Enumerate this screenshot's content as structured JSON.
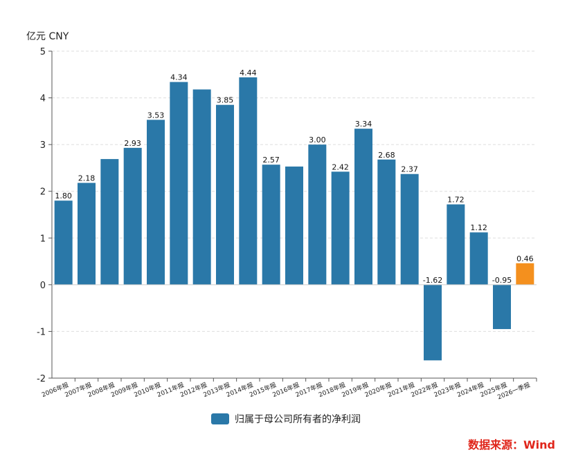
{
  "unit_label": "亿元  CNY",
  "source_label": "数据来源：Wind",
  "colors": {
    "main": "#2a78a8",
    "highlight": "#f4901e",
    "grid": "#dddddd",
    "axis": "#555555",
    "source": "#e0261b"
  },
  "chart_data": {
    "type": "bar",
    "categories": [
      "2006年报",
      "2007年报",
      "2008年报",
      "2009年报",
      "2010年报",
      "2011年报",
      "2012年报",
      "2013年报",
      "2014年报",
      "2015年报",
      "2016年报",
      "2017年报",
      "2018年报",
      "2019年报",
      "2020年报",
      "2021年报",
      "2022年报",
      "2023年报",
      "2024年报",
      "2025年报",
      "2026一季报"
    ],
    "series": [
      {
        "name": "归属于母公司所有者的净利润",
        "values": [
          1.8,
          2.18,
          2.69,
          2.93,
          3.53,
          4.34,
          4.18,
          3.85,
          4.44,
          2.57,
          2.53,
          3.0,
          2.42,
          3.34,
          2.68,
          2.37,
          -1.62,
          1.72,
          1.12,
          -0.95,
          0.46
        ]
      }
    ],
    "data_labels": [
      "1.80",
      "2.18",
      "",
      "2.93",
      "3.53",
      "4.34",
      "",
      "3.85",
      "4.44",
      "2.57",
      "",
      "3.00",
      "2.42",
      "3.34",
      "2.68",
      "2.37",
      "-1.62",
      "1.72",
      "1.12",
      "-0.95",
      "0.46"
    ],
    "highlight_index": 20,
    "ylim": [
      -2,
      5
    ],
    "yticks": [
      -2,
      -1,
      0,
      1,
      2,
      3,
      4,
      5
    ],
    "grid": true,
    "legend_position": "bottom"
  }
}
